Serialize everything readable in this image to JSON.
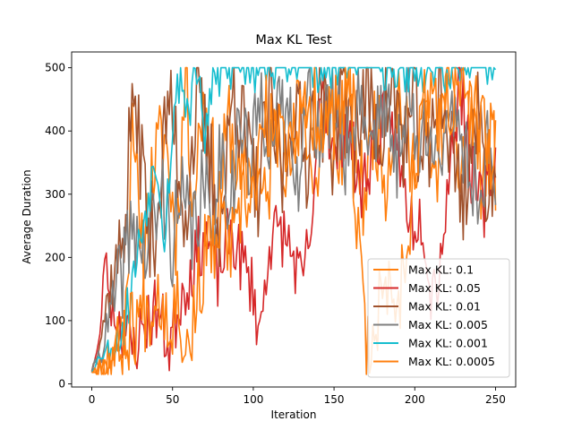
{
  "chart_data": {
    "type": "line",
    "title": "Max KL Test",
    "xlabel": "Iteration",
    "ylabel": "Average Duration",
    "xlim": [
      -12.5,
      262.5
    ],
    "ylim": [
      -5,
      525
    ],
    "xticks": [
      0,
      50,
      100,
      150,
      200,
      250
    ],
    "yticks": [
      0,
      100,
      200,
      300,
      400,
      500
    ],
    "grid": false,
    "legend_position": "lower right",
    "series": [
      {
        "name": "Max KL: 0.1",
        "color": "#ff7f0e",
        "anchors": [
          [
            0,
            18
          ],
          [
            8,
            32
          ],
          [
            16,
            65
          ],
          [
            22,
            120
          ],
          [
            25,
            500
          ],
          [
            30,
            180
          ],
          [
            38,
            340
          ],
          [
            45,
            400
          ],
          [
            52,
            240
          ],
          [
            58,
            470
          ],
          [
            63,
            300
          ],
          [
            70,
            480
          ],
          [
            78,
            270
          ],
          [
            85,
            420
          ],
          [
            92,
            310
          ],
          [
            100,
            360
          ],
          [
            108,
            270
          ],
          [
            115,
            450
          ],
          [
            122,
            320
          ],
          [
            130,
            480
          ],
          [
            138,
            290
          ],
          [
            145,
            440
          ],
          [
            152,
            330
          ],
          [
            160,
            460
          ],
          [
            168,
            290
          ],
          [
            175,
            420
          ],
          [
            182,
            330
          ],
          [
            190,
            470
          ],
          [
            198,
            330
          ],
          [
            205,
            450
          ],
          [
            212,
            300
          ],
          [
            220,
            480
          ],
          [
            228,
            330
          ],
          [
            235,
            460
          ],
          [
            242,
            310
          ],
          [
            248,
            390
          ],
          [
            250,
            340
          ]
        ],
        "noise": 75,
        "seed": 11
      },
      {
        "name": "Max KL: 0.05",
        "color": "#d62728",
        "anchors": [
          [
            0,
            18
          ],
          [
            5,
            70
          ],
          [
            8,
            210
          ],
          [
            12,
            120
          ],
          [
            18,
            95
          ],
          [
            25,
            55
          ],
          [
            32,
            90
          ],
          [
            40,
            120
          ],
          [
            48,
            60
          ],
          [
            55,
            140
          ],
          [
            62,
            180
          ],
          [
            70,
            240
          ],
          [
            78,
            170
          ],
          [
            86,
            240
          ],
          [
            95,
            180
          ],
          [
            100,
            150
          ],
          [
            104,
            75
          ],
          [
            110,
            230
          ],
          [
            118,
            240
          ],
          [
            125,
            200
          ],
          [
            130,
            150
          ],
          [
            138,
            280
          ],
          [
            142,
            500
          ],
          [
            150,
            350
          ],
          [
            158,
            420
          ],
          [
            166,
            300
          ],
          [
            175,
            380
          ],
          [
            185,
            430
          ],
          [
            192,
            320
          ],
          [
            198,
            260
          ],
          [
            205,
            270
          ],
          [
            210,
            150
          ],
          [
            215,
            180
          ],
          [
            220,
            300
          ],
          [
            228,
            480
          ],
          [
            235,
            340
          ],
          [
            242,
            270
          ],
          [
            248,
            350
          ],
          [
            250,
            360
          ]
        ],
        "noise": 55,
        "seed": 23
      },
      {
        "name": "Max KL: 0.01",
        "color": "#a0522d",
        "anchors": [
          [
            0,
            20
          ],
          [
            6,
            85
          ],
          [
            12,
            160
          ],
          [
            18,
            210
          ],
          [
            22,
            320
          ],
          [
            26,
            500
          ],
          [
            30,
            380
          ],
          [
            36,
            220
          ],
          [
            42,
            300
          ],
          [
            48,
            470
          ],
          [
            52,
            380
          ],
          [
            58,
            270
          ],
          [
            65,
            440
          ],
          [
            72,
            360
          ],
          [
            80,
            250
          ],
          [
            88,
            470
          ],
          [
            95,
            380
          ],
          [
            102,
            300
          ],
          [
            110,
            430
          ],
          [
            118,
            330
          ],
          [
            125,
            450
          ],
          [
            132,
            350
          ],
          [
            140,
            470
          ],
          [
            148,
            370
          ],
          [
            155,
            480
          ],
          [
            162,
            380
          ],
          [
            170,
            460
          ],
          [
            178,
            400
          ],
          [
            186,
            470
          ],
          [
            194,
            380
          ],
          [
            200,
            430
          ],
          [
            208,
            330
          ],
          [
            215,
            470
          ],
          [
            222,
            380
          ],
          [
            230,
            300
          ],
          [
            238,
            420
          ],
          [
            245,
            330
          ],
          [
            250,
            300
          ]
        ],
        "noise": 90,
        "seed": 37
      },
      {
        "name": "Max KL: 0.005",
        "color": "#7f7f7f",
        "anchors": [
          [
            0,
            20
          ],
          [
            8,
            70
          ],
          [
            14,
            130
          ],
          [
            20,
            190
          ],
          [
            26,
            260
          ],
          [
            32,
            200
          ],
          [
            38,
            250
          ],
          [
            44,
            300
          ],
          [
            50,
            230
          ],
          [
            56,
            280
          ],
          [
            62,
            240
          ],
          [
            68,
            300
          ],
          [
            74,
            260
          ],
          [
            80,
            370
          ],
          [
            86,
            300
          ],
          [
            92,
            420
          ],
          [
            98,
            330
          ],
          [
            105,
            460
          ],
          [
            112,
            380
          ],
          [
            120,
            440
          ],
          [
            128,
            350
          ],
          [
            135,
            470
          ],
          [
            142,
            380
          ],
          [
            150,
            450
          ],
          [
            158,
            360
          ],
          [
            165,
            470
          ],
          [
            172,
            380
          ],
          [
            180,
            460
          ],
          [
            188,
            340
          ],
          [
            195,
            470
          ],
          [
            202,
            360
          ],
          [
            210,
            440
          ],
          [
            218,
            320
          ],
          [
            225,
            470
          ],
          [
            232,
            350
          ],
          [
            240,
            310
          ],
          [
            246,
            380
          ],
          [
            250,
            340
          ]
        ],
        "noise": 80,
        "seed": 41
      },
      {
        "name": "Max KL: 0.001",
        "color": "#17becf",
        "anchors": [
          [
            0,
            18
          ],
          [
            5,
            45
          ],
          [
            10,
            55
          ],
          [
            15,
            70
          ],
          [
            20,
            90
          ],
          [
            25,
            160
          ],
          [
            30,
            230
          ],
          [
            35,
            300
          ],
          [
            40,
            360
          ],
          [
            45,
            240
          ],
          [
            50,
            400
          ],
          [
            55,
            500
          ],
          [
            60,
            420
          ],
          [
            65,
            500
          ],
          [
            70,
            380
          ],
          [
            75,
            500
          ],
          [
            80,
            470
          ],
          [
            85,
            500
          ],
          [
            90,
            500
          ],
          [
            95,
            500
          ],
          [
            100,
            500
          ],
          [
            110,
            500
          ],
          [
            120,
            500
          ],
          [
            130,
            500
          ],
          [
            140,
            500
          ],
          [
            150,
            500
          ],
          [
            160,
            500
          ],
          [
            170,
            500
          ],
          [
            180,
            500
          ],
          [
            190,
            500
          ],
          [
            200,
            500
          ],
          [
            210,
            500
          ],
          [
            220,
            500
          ],
          [
            230,
            500
          ],
          [
            240,
            500
          ],
          [
            245,
            500
          ],
          [
            250,
            500
          ]
        ],
        "noise": 40,
        "seed": 53
      },
      {
        "name": "Max KL: 0.0005",
        "color": "#ff7f0e",
        "anchors": [
          [
            0,
            18
          ],
          [
            6,
            30
          ],
          [
            12,
            40
          ],
          [
            18,
            60
          ],
          [
            24,
            90
          ],
          [
            30,
            110
          ],
          [
            36,
            130
          ],
          [
            42,
            150
          ],
          [
            48,
            100
          ],
          [
            54,
            140
          ],
          [
            58,
            45
          ],
          [
            62,
            90
          ],
          [
            66,
            150
          ],
          [
            70,
            200
          ],
          [
            76,
            220
          ],
          [
            82,
            240
          ],
          [
            88,
            210
          ],
          [
            94,
            280
          ],
          [
            100,
            300
          ],
          [
            108,
            420
          ],
          [
            115,
            380
          ],
          [
            122,
            400
          ],
          [
            130,
            410
          ],
          [
            138,
            440
          ],
          [
            145,
            420
          ],
          [
            152,
            420
          ],
          [
            160,
            440
          ],
          [
            166,
            170
          ],
          [
            170,
            50
          ],
          [
            175,
            90
          ],
          [
            180,
            140
          ],
          [
            185,
            160
          ],
          [
            190,
            130
          ],
          [
            195,
            220
          ],
          [
            200,
            350
          ],
          [
            205,
            420
          ],
          [
            210,
            470
          ],
          [
            215,
            420
          ],
          [
            220,
            440
          ],
          [
            228,
            460
          ],
          [
            235,
            430
          ],
          [
            242,
            400
          ],
          [
            248,
            330
          ],
          [
            250,
            370
          ]
        ],
        "noise": 70,
        "seed": 67
      }
    ]
  }
}
